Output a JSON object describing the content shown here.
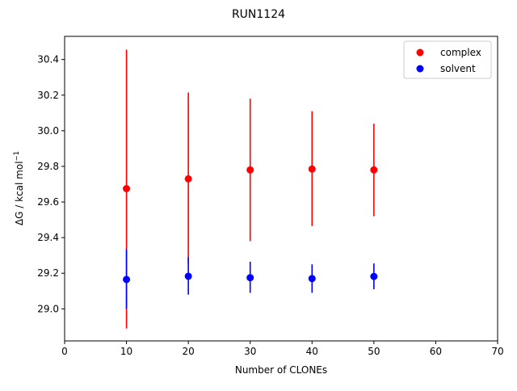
{
  "chart_data": {
    "type": "scatter",
    "title": "RUN1124",
    "xlabel": "Number of CLONEs",
    "ylabel_main": "ΔG / kcal mol",
    "ylabel_sup": "−1",
    "xlim": [
      0,
      70
    ],
    "ylim": [
      28.82,
      30.53
    ],
    "xticks": [
      0,
      10,
      20,
      30,
      40,
      50,
      60,
      70
    ],
    "yticks": [
      29.0,
      29.2,
      29.4,
      29.6,
      29.8,
      30.0,
      30.2,
      30.4
    ],
    "grid": false,
    "legend_position": "top-right",
    "series": [
      {
        "name": "complex",
        "color": "#ff0000",
        "x": [
          10,
          20,
          30,
          40,
          50
        ],
        "y": [
          29.675,
          29.73,
          29.78,
          29.785,
          29.78
        ],
        "err_low": [
          28.89,
          29.25,
          29.38,
          29.465,
          29.52
        ],
        "err_high": [
          30.455,
          30.215,
          30.18,
          30.11,
          30.04
        ]
      },
      {
        "name": "solvent",
        "color": "#0000ff",
        "x": [
          10,
          20,
          30,
          40,
          50
        ],
        "y": [
          29.165,
          29.183,
          29.175,
          29.17,
          29.182
        ],
        "err_low": [
          29.0,
          29.08,
          29.09,
          29.09,
          29.11
        ],
        "err_high": [
          29.335,
          29.29,
          29.265,
          29.25,
          29.255
        ]
      }
    ]
  }
}
